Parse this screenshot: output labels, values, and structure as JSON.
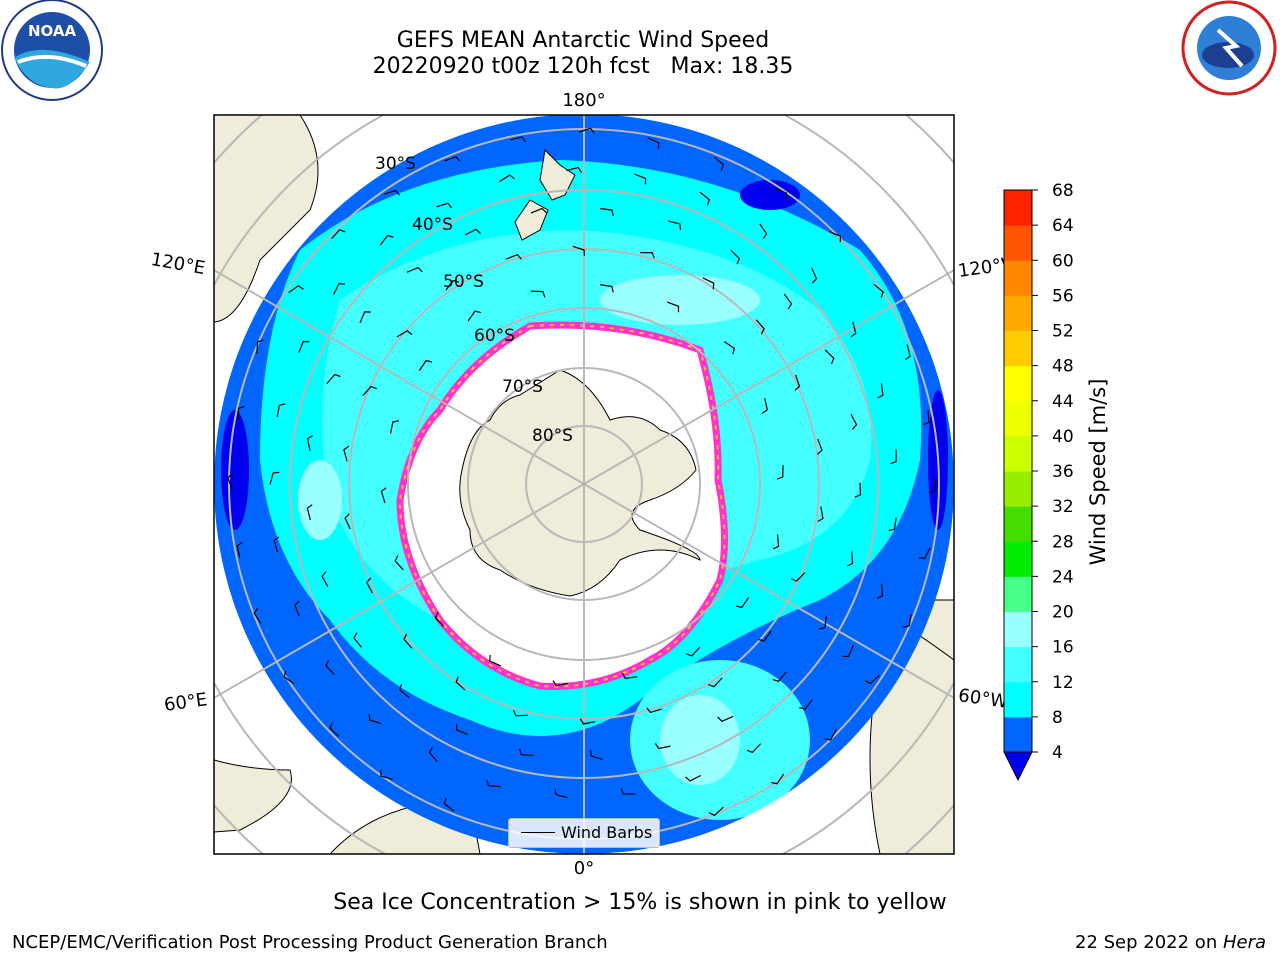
{
  "title": {
    "line1": "GEFS MEAN Antarctic Wind Speed",
    "line2": "20220920 t00z 120h fcst   Max: 18.35"
  },
  "lon_labels": [
    "180°",
    "120°E",
    "120°W",
    "60°E",
    "60°W",
    "0°"
  ],
  "lat_labels": [
    "30°S",
    "40°S",
    "50°S",
    "60°S",
    "70°S",
    "80°S"
  ],
  "legend": {
    "wind_barbs": "Wind Barbs"
  },
  "colorbar": {
    "label": "Wind Speed [m/s]",
    "ticks": [
      "4",
      "8",
      "12",
      "16",
      "20",
      "24",
      "28",
      "32",
      "36",
      "40",
      "44",
      "48",
      "52",
      "56",
      "60",
      "64",
      "68"
    ],
    "colors": [
      "#0066ff",
      "#00ffff",
      "#44ffff",
      "#99ffff",
      "#44ff88",
      "#00ee00",
      "#44dd00",
      "#99ee00",
      "#ccff00",
      "#eeff00",
      "#ffff00",
      "#ffcc00",
      "#ffaa00",
      "#ff8800",
      "#ff5500",
      "#ff2200"
    ],
    "under_color": "#0000ee"
  },
  "caption": "Sea Ice Concentration > 15% is shown in pink to yellow",
  "footer": {
    "left": "NCEP/EMC/Verification Post Processing Product Generation Branch",
    "right_prefix": "22 Sep 2022 on ",
    "right_machine": "Hera"
  },
  "logos": {
    "noara_text": "NOAA",
    "nws_icon": "nws-logo-icon",
    "noaa_icon": "noaa-logo-icon"
  }
}
